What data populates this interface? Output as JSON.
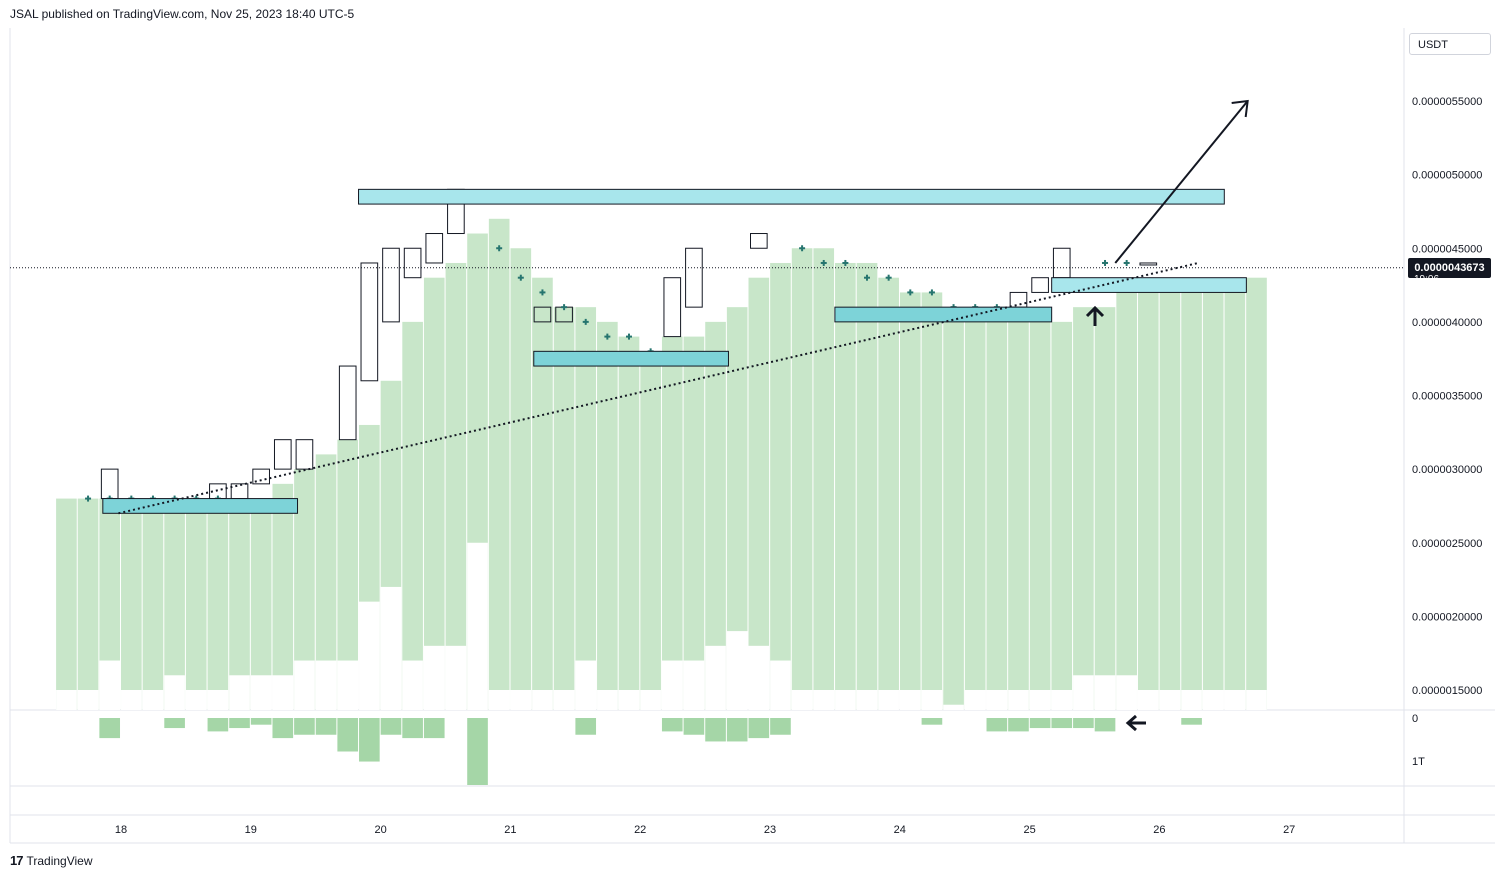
{
  "header": {
    "attribution": "JSAL published on TradingView.com, Nov 25, 2023 18:40 UTC-5"
  },
  "price_axis": {
    "currency": "USDT",
    "ticks": [
      "0.0000055000",
      "0.0000050000",
      "0.0000045000",
      "0.0000040000",
      "0.0000035000",
      "0.0000030000",
      "0.0000025000",
      "0.0000020000",
      "0.0000015000"
    ],
    "current_price": "0.0000043673",
    "current_price_sub": "19:06"
  },
  "volume_axis": {
    "ticks": [
      "0",
      "1T"
    ]
  },
  "time_axis": {
    "labels": [
      "18",
      "19",
      "20",
      "21",
      "22",
      "23",
      "24",
      "25",
      "26",
      "27"
    ]
  },
  "footer": {
    "logo_text": "TradingView"
  },
  "colors": {
    "area_fill": "#c8e6c9",
    "volume_fill": "#a5d6a7",
    "zone_fill": "#a8e6ec",
    "zone_fill_dark": "#7dd3d8",
    "plus_marker": "#26756f",
    "line": "#131722"
  },
  "chart_data": {
    "type": "bar",
    "title": "",
    "x_start_day": 17.5,
    "bar_step_days": 0.1667,
    "x_labels": [
      "18",
      "19",
      "20",
      "21",
      "22",
      "23",
      "24",
      "25",
      "26",
      "27"
    ],
    "y_range": [
      1.3e-06,
      6.2e-06
    ],
    "area_series": [
      {
        "low": 1.5e-06,
        "high": 2.8e-06
      },
      {
        "low": 1.5e-06,
        "high": 2.8e-06
      },
      {
        "low": 1.7e-06,
        "high": 2.8e-06
      },
      {
        "low": 1.5e-06,
        "high": 2.8e-06
      },
      {
        "low": 1.5e-06,
        "high": 2.8e-06
      },
      {
        "low": 1.6e-06,
        "high": 2.8e-06
      },
      {
        "low": 1.5e-06,
        "high": 2.8e-06
      },
      {
        "low": 1.5e-06,
        "high": 2.8e-06
      },
      {
        "low": 1.6e-06,
        "high": 2.8e-06
      },
      {
        "low": 1.6e-06,
        "high": 2.8e-06
      },
      {
        "low": 1.6e-06,
        "high": 2.9e-06
      },
      {
        "low": 1.7e-06,
        "high": 3e-06
      },
      {
        "low": 1.7e-06,
        "high": 3.1e-06
      },
      {
        "low": 1.7e-06,
        "high": 3.2e-06
      },
      {
        "low": 2.1e-06,
        "high": 3.3e-06
      },
      {
        "low": 2.2e-06,
        "high": 3.6e-06
      },
      {
        "low": 1.7e-06,
        "high": 4e-06
      },
      {
        "low": 1.8e-06,
        "high": 4.3e-06
      },
      {
        "low": 1.8e-06,
        "high": 4.4e-06
      },
      {
        "low": 2.5e-06,
        "high": 4.6e-06
      },
      {
        "low": 1.5e-06,
        "high": 4.7e-06
      },
      {
        "low": 1.5e-06,
        "high": 4.5e-06
      },
      {
        "low": 1.5e-06,
        "high": 4.3e-06
      },
      {
        "low": 1.5e-06,
        "high": 4.1e-06
      },
      {
        "low": 1.7e-06,
        "high": 4.1e-06
      },
      {
        "low": 1.5e-06,
        "high": 4e-06
      },
      {
        "low": 1.5e-06,
        "high": 3.9e-06
      },
      {
        "low": 1.5e-06,
        "high": 3.8e-06
      },
      {
        "low": 1.7e-06,
        "high": 3.9e-06
      },
      {
        "low": 1.7e-06,
        "high": 3.9e-06
      },
      {
        "low": 1.8e-06,
        "high": 4e-06
      },
      {
        "low": 1.9e-06,
        "high": 4.1e-06
      },
      {
        "low": 1.8e-06,
        "high": 4.3e-06
      },
      {
        "low": 1.7e-06,
        "high": 4.4e-06
      },
      {
        "low": 1.5e-06,
        "high": 4.5e-06
      },
      {
        "low": 1.5e-06,
        "high": 4.5e-06
      },
      {
        "low": 1.5e-06,
        "high": 4.4e-06
      },
      {
        "low": 1.5e-06,
        "high": 4.4e-06
      },
      {
        "low": 1.5e-06,
        "high": 4.3e-06
      },
      {
        "low": 1.5e-06,
        "high": 4.2e-06
      },
      {
        "low": 1.5e-06,
        "high": 4.2e-06
      },
      {
        "low": 1.4e-06,
        "high": 4.1e-06
      },
      {
        "low": 1.5e-06,
        "high": 4.1e-06
      },
      {
        "low": 1.5e-06,
        "high": 4.1e-06
      },
      {
        "low": 1.5e-06,
        "high": 4e-06
      },
      {
        "low": 1.5e-06,
        "high": 4e-06
      },
      {
        "low": 1.5e-06,
        "high": 4e-06
      },
      {
        "low": 1.6e-06,
        "high": 4.1e-06
      },
      {
        "low": 1.6e-06,
        "high": 4.1e-06
      },
      {
        "low": 1.6e-06,
        "high": 4.2e-06
      },
      {
        "low": 1.5e-06,
        "high": 4.2e-06
      },
      {
        "low": 1.5e-06,
        "high": 4.3e-06
      },
      {
        "low": 1.5e-06,
        "high": 4.3e-06
      },
      {
        "low": 1.5e-06,
        "high": 4.3e-06
      },
      {
        "low": 1.5e-06,
        "high": 4.3e-06
      },
      {
        "low": 1.5e-06,
        "high": 4.3e-06
      }
    ],
    "volume_series": [
      0,
      0,
      0.3,
      0,
      0,
      0.15,
      0,
      0.2,
      0.15,
      0.1,
      0.3,
      0.25,
      0.25,
      0.5,
      0.65,
      0.25,
      0.3,
      0.3,
      0,
      1.0,
      0,
      0,
      0,
      0,
      0.25,
      0,
      0,
      0,
      0.2,
      0.25,
      0.35,
      0.35,
      0.3,
      0.25,
      0,
      0,
      0,
      0,
      0,
      0,
      0.1,
      0,
      0,
      0.2,
      0.2,
      0.15,
      0.15,
      0.15,
      0.2,
      0,
      0,
      0,
      0.1,
      0,
      0,
      0
    ],
    "hollow_candles": [
      {
        "i": 2,
        "low": 2.8e-06,
        "high": 3e-06
      },
      {
        "i": 7,
        "low": 2.8e-06,
        "high": 2.9e-06
      },
      {
        "i": 8,
        "low": 2.8e-06,
        "high": 2.9e-06
      },
      {
        "i": 9,
        "low": 2.9e-06,
        "high": 3e-06
      },
      {
        "i": 10,
        "low": 3e-06,
        "high": 3.2e-06
      },
      {
        "i": 11,
        "low": 3e-06,
        "high": 3.2e-06
      },
      {
        "i": 13,
        "low": 3.2e-06,
        "high": 3.7e-06
      },
      {
        "i": 14,
        "low": 3.6e-06,
        "high": 4.4e-06
      },
      {
        "i": 15,
        "low": 4e-06,
        "high": 4.5e-06
      },
      {
        "i": 16,
        "low": 4.3e-06,
        "high": 4.5e-06
      },
      {
        "i": 17,
        "low": 4.4e-06,
        "high": 4.6e-06
      },
      {
        "i": 18,
        "low": 4.6e-06,
        "high": 4.9e-06
      },
      {
        "i": 22,
        "low": 4e-06,
        "high": 4.1e-06
      },
      {
        "i": 23,
        "low": 4e-06,
        "high": 4.1e-06
      },
      {
        "i": 28,
        "low": 3.9e-06,
        "high": 4.3e-06
      },
      {
        "i": 29,
        "low": 4.1e-06,
        "high": 4.5e-06
      },
      {
        "i": 32,
        "low": 4.5e-06,
        "high": 4.6e-06
      },
      {
        "i": 44,
        "low": 4.1e-06,
        "high": 4.2e-06
      },
      {
        "i": 45,
        "low": 4.2e-06,
        "high": 4.3e-06
      },
      {
        "i": 46,
        "low": 4.3e-06,
        "high": 4.5e-06
      },
      {
        "i": 50,
        "low": 4.4e-06,
        "high": 4.4e-06
      }
    ],
    "plus_markers": [
      {
        "i": 1,
        "y": 2.8e-06
      },
      {
        "i": 2,
        "y": 2.8e-06
      },
      {
        "i": 3,
        "y": 2.8e-06
      },
      {
        "i": 4,
        "y": 2.8e-06
      },
      {
        "i": 5,
        "y": 2.8e-06
      },
      {
        "i": 6,
        "y": 2.8e-06
      },
      {
        "i": 7,
        "y": 2.8e-06
      },
      {
        "i": 20,
        "y": 4.5e-06
      },
      {
        "i": 21,
        "y": 4.3e-06
      },
      {
        "i": 22,
        "y": 4.2e-06
      },
      {
        "i": 23,
        "y": 4.1e-06
      },
      {
        "i": 24,
        "y": 4e-06
      },
      {
        "i": 25,
        "y": 3.9e-06
      },
      {
        "i": 26,
        "y": 3.9e-06
      },
      {
        "i": 27,
        "y": 3.8e-06
      },
      {
        "i": 34,
        "y": 4.5e-06
      },
      {
        "i": 35,
        "y": 4.4e-06
      },
      {
        "i": 36,
        "y": 4.4e-06
      },
      {
        "i": 37,
        "y": 4.3e-06
      },
      {
        "i": 38,
        "y": 4.3e-06
      },
      {
        "i": 39,
        "y": 4.2e-06
      },
      {
        "i": 40,
        "y": 4.2e-06
      },
      {
        "i": 41,
        "y": 4.1e-06
      },
      {
        "i": 42,
        "y": 4.1e-06
      },
      {
        "i": 43,
        "y": 4.1e-06
      },
      {
        "i": 48,
        "y": 4.4e-06
      },
      {
        "i": 49,
        "y": 4.4e-06
      }
    ],
    "zones": [
      {
        "x0": 17.86,
        "x1": 19.36,
        "y0": 2.7e-06,
        "y1": 2.8e-06,
        "dark": true
      },
      {
        "x0": 19.83,
        "x1": 26.5,
        "y0": 4.8e-06,
        "y1": 4.9e-06,
        "dark": false
      },
      {
        "x0": 21.18,
        "x1": 22.68,
        "y0": 3.7e-06,
        "y1": 3.8e-06,
        "dark": true
      },
      {
        "x0": 23.5,
        "x1": 25.17,
        "y0": 4e-06,
        "y1": 4.1e-06,
        "dark": true
      },
      {
        "x0": 25.17,
        "x1": 26.67,
        "y0": 4.2e-06,
        "y1": 4.3e-06,
        "dark": false
      }
    ],
    "trend_line": {
      "x0": 17.98,
      "y0": 2.7e-06,
      "x1": 26.3,
      "y1": 4.4e-06
    },
    "arrow_line": {
      "x0": 25.66,
      "y0": 4.4e-06,
      "x1": 26.68,
      "y1": 5.5e-06
    },
    "current_price_value": 4.3673e-06
  }
}
